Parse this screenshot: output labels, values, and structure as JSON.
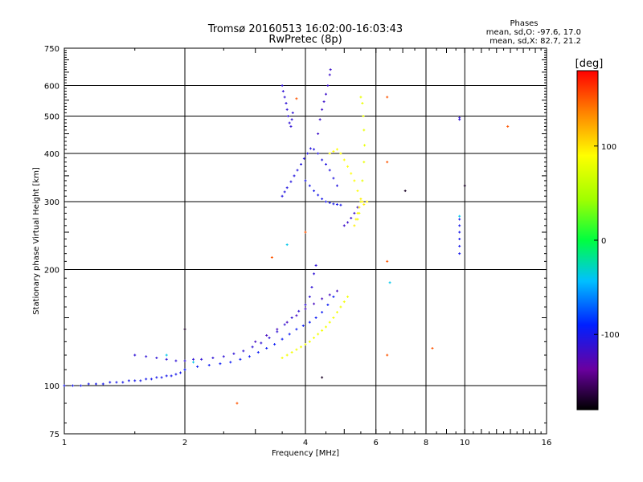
{
  "chart_data": {
    "type": "scatter",
    "title": "Tromsø 20160513 16:02:00-16:03:43",
    "subtitle": "RwPretec (8p)",
    "xlabel": "Frequency [MHz]",
    "ylabel": "Stationary phase Virtual Height [km]",
    "x_scale": "log",
    "y_scale": "log",
    "xlim": [
      1,
      16
    ],
    "ylim": [
      75,
      750
    ],
    "x_ticks": [
      1,
      2,
      4,
      6,
      8,
      10,
      16
    ],
    "x_tick_labels": [
      "1",
      "2",
      "4",
      "6",
      "8",
      "10",
      "16"
    ],
    "y_ticks": [
      75,
      100,
      200,
      300,
      400,
      500,
      600,
      750
    ],
    "y_tick_labels": [
      "75",
      "100",
      "200",
      "300",
      "400",
      "500",
      "600",
      "750"
    ],
    "grid": true,
    "stats": {
      "heading": "Phases",
      "line_o": "mean, sd,O: -97.6, 17.0",
      "line_x": "mean, sd,X:  82.7, 21.2"
    },
    "colorbar": {
      "label": "[deg]",
      "min": -180,
      "max": 180,
      "ticks": [
        100,
        0,
        -100
      ],
      "tick_labels": [
        "100",
        "0",
        "-100"
      ]
    },
    "series": [
      {
        "phase": -100,
        "points": [
          [
            1.0,
            100
          ],
          [
            1.05,
            100
          ],
          [
            1.1,
            100
          ],
          [
            1.15,
            101
          ],
          [
            1.2,
            101
          ],
          [
            1.25,
            101
          ],
          [
            1.3,
            102
          ],
          [
            1.35,
            102
          ],
          [
            1.4,
            102
          ],
          [
            1.45,
            103
          ],
          [
            1.5,
            103
          ],
          [
            1.55,
            103
          ],
          [
            1.6,
            104
          ],
          [
            1.65,
            104
          ],
          [
            1.7,
            105
          ],
          [
            1.75,
            105
          ],
          [
            1.8,
            106
          ],
          [
            1.85,
            106
          ],
          [
            1.9,
            107
          ],
          [
            1.95,
            108
          ],
          [
            2.0,
            110
          ]
        ]
      },
      {
        "phase": -110,
        "points": [
          [
            1.5,
            120
          ],
          [
            1.6,
            119
          ],
          [
            1.7,
            118
          ],
          [
            1.8,
            117
          ],
          [
            1.9,
            116
          ],
          [
            2.0,
            116
          ],
          [
            2.1,
            117
          ],
          [
            2.2,
            117
          ],
          [
            2.35,
            118
          ],
          [
            2.5,
            119
          ],
          [
            2.65,
            121
          ],
          [
            2.8,
            123
          ],
          [
            2.95,
            126
          ],
          [
            3.1,
            129
          ],
          [
            3.25,
            133
          ],
          [
            3.4,
            138
          ],
          [
            3.55,
            144
          ],
          [
            3.7,
            150
          ],
          [
            3.85,
            156
          ],
          [
            4.0,
            162
          ],
          [
            4.1,
            170
          ],
          [
            4.15,
            180
          ],
          [
            4.2,
            195
          ],
          [
            4.25,
            205
          ]
        ]
      },
      {
        "phase": -95,
        "points": [
          [
            2.0,
            110
          ],
          [
            2.15,
            112
          ],
          [
            2.3,
            113
          ],
          [
            2.45,
            114
          ],
          [
            2.6,
            115
          ],
          [
            2.75,
            117
          ],
          [
            2.9,
            119
          ],
          [
            3.05,
            122
          ],
          [
            3.2,
            125
          ],
          [
            3.35,
            128
          ],
          [
            3.5,
            132
          ],
          [
            3.65,
            136
          ],
          [
            3.8,
            140
          ],
          [
            3.95,
            143
          ],
          [
            4.1,
            146
          ],
          [
            4.25,
            150
          ],
          [
            4.4,
            155
          ],
          [
            4.55,
            162
          ],
          [
            4.7,
            170
          ]
        ]
      },
      {
        "phase": -120,
        "points": [
          [
            3.0,
            130
          ],
          [
            3.2,
            135
          ],
          [
            3.4,
            140
          ],
          [
            3.6,
            146
          ],
          [
            3.8,
            152
          ],
          [
            4.0,
            158
          ],
          [
            4.2,
            163
          ],
          [
            4.4,
            168
          ],
          [
            4.6,
            172
          ],
          [
            4.8,
            176
          ]
        ]
      },
      {
        "phase": -105,
        "points": [
          [
            3.5,
            310
          ],
          [
            3.55,
            318
          ],
          [
            3.6,
            326
          ],
          [
            3.68,
            338
          ],
          [
            3.75,
            350
          ],
          [
            3.82,
            362
          ],
          [
            3.9,
            375
          ],
          [
            3.97,
            388
          ],
          [
            4.05,
            400
          ],
          [
            4.12,
            412
          ],
          [
            4.2,
            410
          ],
          [
            4.3,
            400
          ],
          [
            4.4,
            385
          ],
          [
            4.5,
            375
          ],
          [
            4.6,
            362
          ],
          [
            4.7,
            345
          ],
          [
            4.8,
            330
          ]
        ]
      },
      {
        "phase": -100,
        "points": [
          [
            4.0,
            340
          ],
          [
            4.1,
            330
          ],
          [
            4.2,
            320
          ],
          [
            4.3,
            312
          ],
          [
            4.4,
            305
          ],
          [
            4.5,
            300
          ],
          [
            4.6,
            298
          ],
          [
            4.7,
            296
          ],
          [
            4.8,
            295
          ],
          [
            4.9,
            294
          ]
        ]
      },
      {
        "phase": -115,
        "points": [
          [
            4.3,
            450
          ],
          [
            4.35,
            490
          ],
          [
            4.4,
            520
          ],
          [
            4.45,
            545
          ],
          [
            4.5,
            570
          ],
          [
            4.55,
            600
          ],
          [
            4.6,
            640
          ],
          [
            4.62,
            660
          ]
        ]
      },
      {
        "phase": -110,
        "points": [
          [
            3.5,
            600
          ],
          [
            3.52,
            580
          ],
          [
            3.55,
            560
          ],
          [
            3.58,
            540
          ],
          [
            3.6,
            520
          ],
          [
            3.62,
            500
          ],
          [
            3.65,
            480
          ],
          [
            3.68,
            470
          ],
          [
            3.7,
            490
          ],
          [
            3.72,
            510
          ]
        ]
      },
      {
        "phase": -115,
        "points": [
          [
            5.0,
            260
          ],
          [
            5.1,
            265
          ],
          [
            5.2,
            272
          ],
          [
            5.3,
            280
          ],
          [
            5.4,
            290
          ],
          [
            5.5,
            300
          ]
        ]
      },
      {
        "phase": -100,
        "points": [
          [
            9.7,
            220
          ],
          [
            9.7,
            230
          ],
          [
            9.7,
            240
          ],
          [
            9.7,
            250
          ],
          [
            9.7,
            260
          ],
          [
            9.7,
            270
          ]
        ]
      },
      {
        "phase": -110,
        "points": [
          [
            9.7,
            490
          ],
          [
            9.7,
            495
          ]
        ]
      },
      {
        "phase": 85,
        "points": [
          [
            3.5,
            118
          ],
          [
            3.6,
            120
          ],
          [
            3.7,
            122
          ],
          [
            3.8,
            124
          ],
          [
            3.9,
            126
          ],
          [
            4.0,
            128
          ],
          [
            4.1,
            130
          ],
          [
            4.2,
            133
          ],
          [
            4.3,
            136
          ],
          [
            4.4,
            139
          ],
          [
            4.5,
            142
          ],
          [
            4.6,
            146
          ],
          [
            4.7,
            150
          ],
          [
            4.8,
            155
          ],
          [
            4.9,
            160
          ],
          [
            5.0,
            165
          ],
          [
            5.1,
            170
          ]
        ]
      },
      {
        "phase": 90,
        "points": [
          [
            4.6,
            400
          ],
          [
            4.7,
            405
          ],
          [
            4.8,
            410
          ],
          [
            4.9,
            400
          ],
          [
            5.0,
            385
          ],
          [
            5.1,
            370
          ],
          [
            5.2,
            355
          ],
          [
            5.3,
            340
          ],
          [
            5.4,
            320
          ]
        ]
      },
      {
        "phase": 80,
        "points": [
          [
            5.4,
            270
          ],
          [
            5.45,
            280
          ],
          [
            5.5,
            300
          ],
          [
            5.55,
            340
          ],
          [
            5.6,
            380
          ],
          [
            5.62,
            420
          ],
          [
            5.6,
            460
          ],
          [
            5.58,
            500
          ],
          [
            5.55,
            540
          ],
          [
            5.5,
            560
          ]
        ]
      },
      {
        "phase": 95,
        "points": [
          [
            5.3,
            260
          ],
          [
            5.35,
            270
          ],
          [
            5.4,
            280
          ],
          [
            5.45,
            290
          ],
          [
            5.5,
            305
          ],
          [
            5.55,
            300
          ],
          [
            5.6,
            295
          ],
          [
            5.7,
            300
          ]
        ]
      },
      {
        "phase": 150,
        "points": [
          [
            2.7,
            90
          ],
          [
            3.3,
            215
          ],
          [
            4.0,
            250
          ],
          [
            6.4,
            560
          ],
          [
            6.4,
            380
          ],
          [
            6.4,
            210
          ],
          [
            6.4,
            120
          ],
          [
            12.8,
            470
          ],
          [
            8.3,
            125
          ],
          [
            3.8,
            555
          ]
        ]
      },
      {
        "phase": -40,
        "points": [
          [
            2.1,
            115
          ],
          [
            6.5,
            185
          ],
          [
            9.7,
            275
          ],
          [
            3.6,
            232
          ],
          [
            1.8,
            120
          ]
        ]
      },
      {
        "phase": -170,
        "points": [
          [
            4.4,
            105
          ],
          [
            2.0,
            140
          ],
          [
            7.1,
            320
          ],
          [
            10.0,
            330
          ]
        ]
      }
    ]
  }
}
